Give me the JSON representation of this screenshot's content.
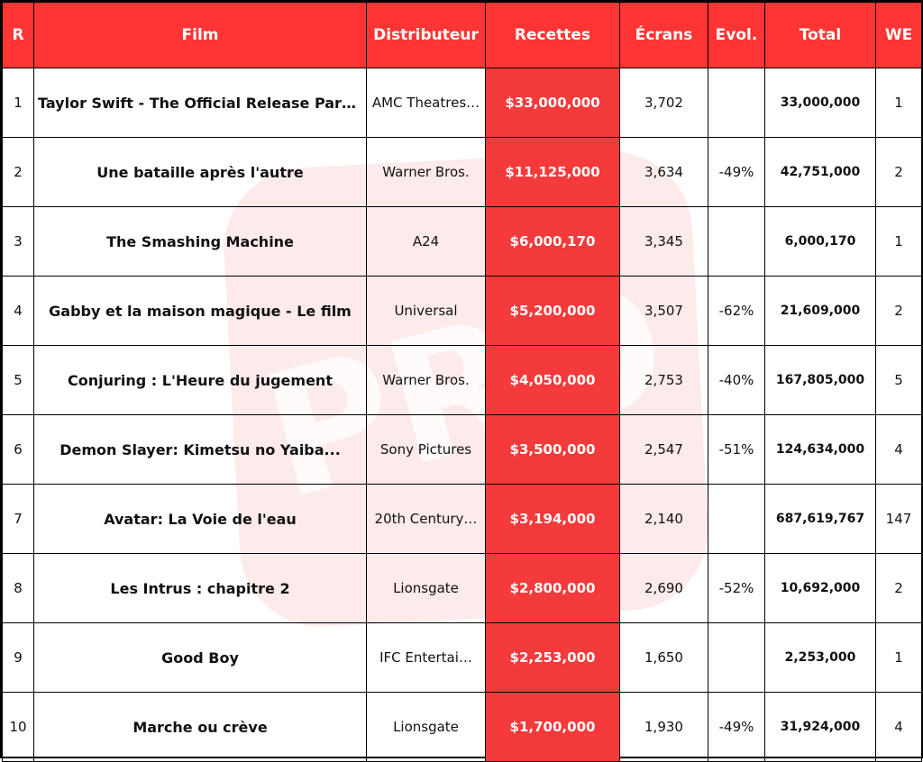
{
  "watermark": "PRO",
  "table": {
    "columns": [
      "R",
      "Film",
      "Distributeur",
      "Recettes",
      "Écrans",
      "Evol.",
      "Total",
      "WE"
    ],
    "rows": [
      [
        "1",
        "Taylor Swift - The Official Release Party…",
        "AMC Theatres…",
        "$33,000,000",
        "3,702",
        null,
        "33,000,000",
        "1"
      ],
      [
        "2",
        "Une bataille après l'autre",
        "Warner Bros.",
        "$11,125,000",
        "3,634",
        "-49%",
        "42,751,000",
        "2"
      ],
      [
        "3",
        "The Smashing Machine",
        "A24",
        "$6,000,170",
        "3,345",
        null,
        "6,000,170",
        "1"
      ],
      [
        "4",
        "Gabby et la maison magique - Le film",
        "Universal",
        "$5,200,000",
        "3,507",
        "-62%",
        "21,609,000",
        "2"
      ],
      [
        "5",
        "Conjuring : L'Heure du jugement",
        "Warner Bros.",
        "$4,050,000",
        "2,753",
        "-40%",
        "167,805,000",
        "5"
      ],
      [
        "6",
        "Demon Slayer: Kimetsu no Yaiba...",
        "Sony Pictures",
        "$3,500,000",
        "2,547",
        "-51%",
        "124,634,000",
        "4"
      ],
      [
        "7",
        "Avatar: La Voie de l'eau",
        "20th Century…",
        "$3,194,000",
        "2,140",
        null,
        "687,619,767",
        "147"
      ],
      [
        "8",
        "Les Intrus : chapitre 2",
        "Lionsgate",
        "$2,800,000",
        "2,690",
        "-52%",
        "10,692,000",
        "2"
      ],
      [
        "9",
        "Good Boy",
        "IFC Entertai…",
        "$2,253,000",
        "1,650",
        null,
        "2,253,000",
        "1"
      ],
      [
        "10",
        "Marche ou crève",
        "Lionsgate",
        "$1,700,000",
        "1,930",
        "-49%",
        "31,924,000",
        "4"
      ]
    ]
  }
}
